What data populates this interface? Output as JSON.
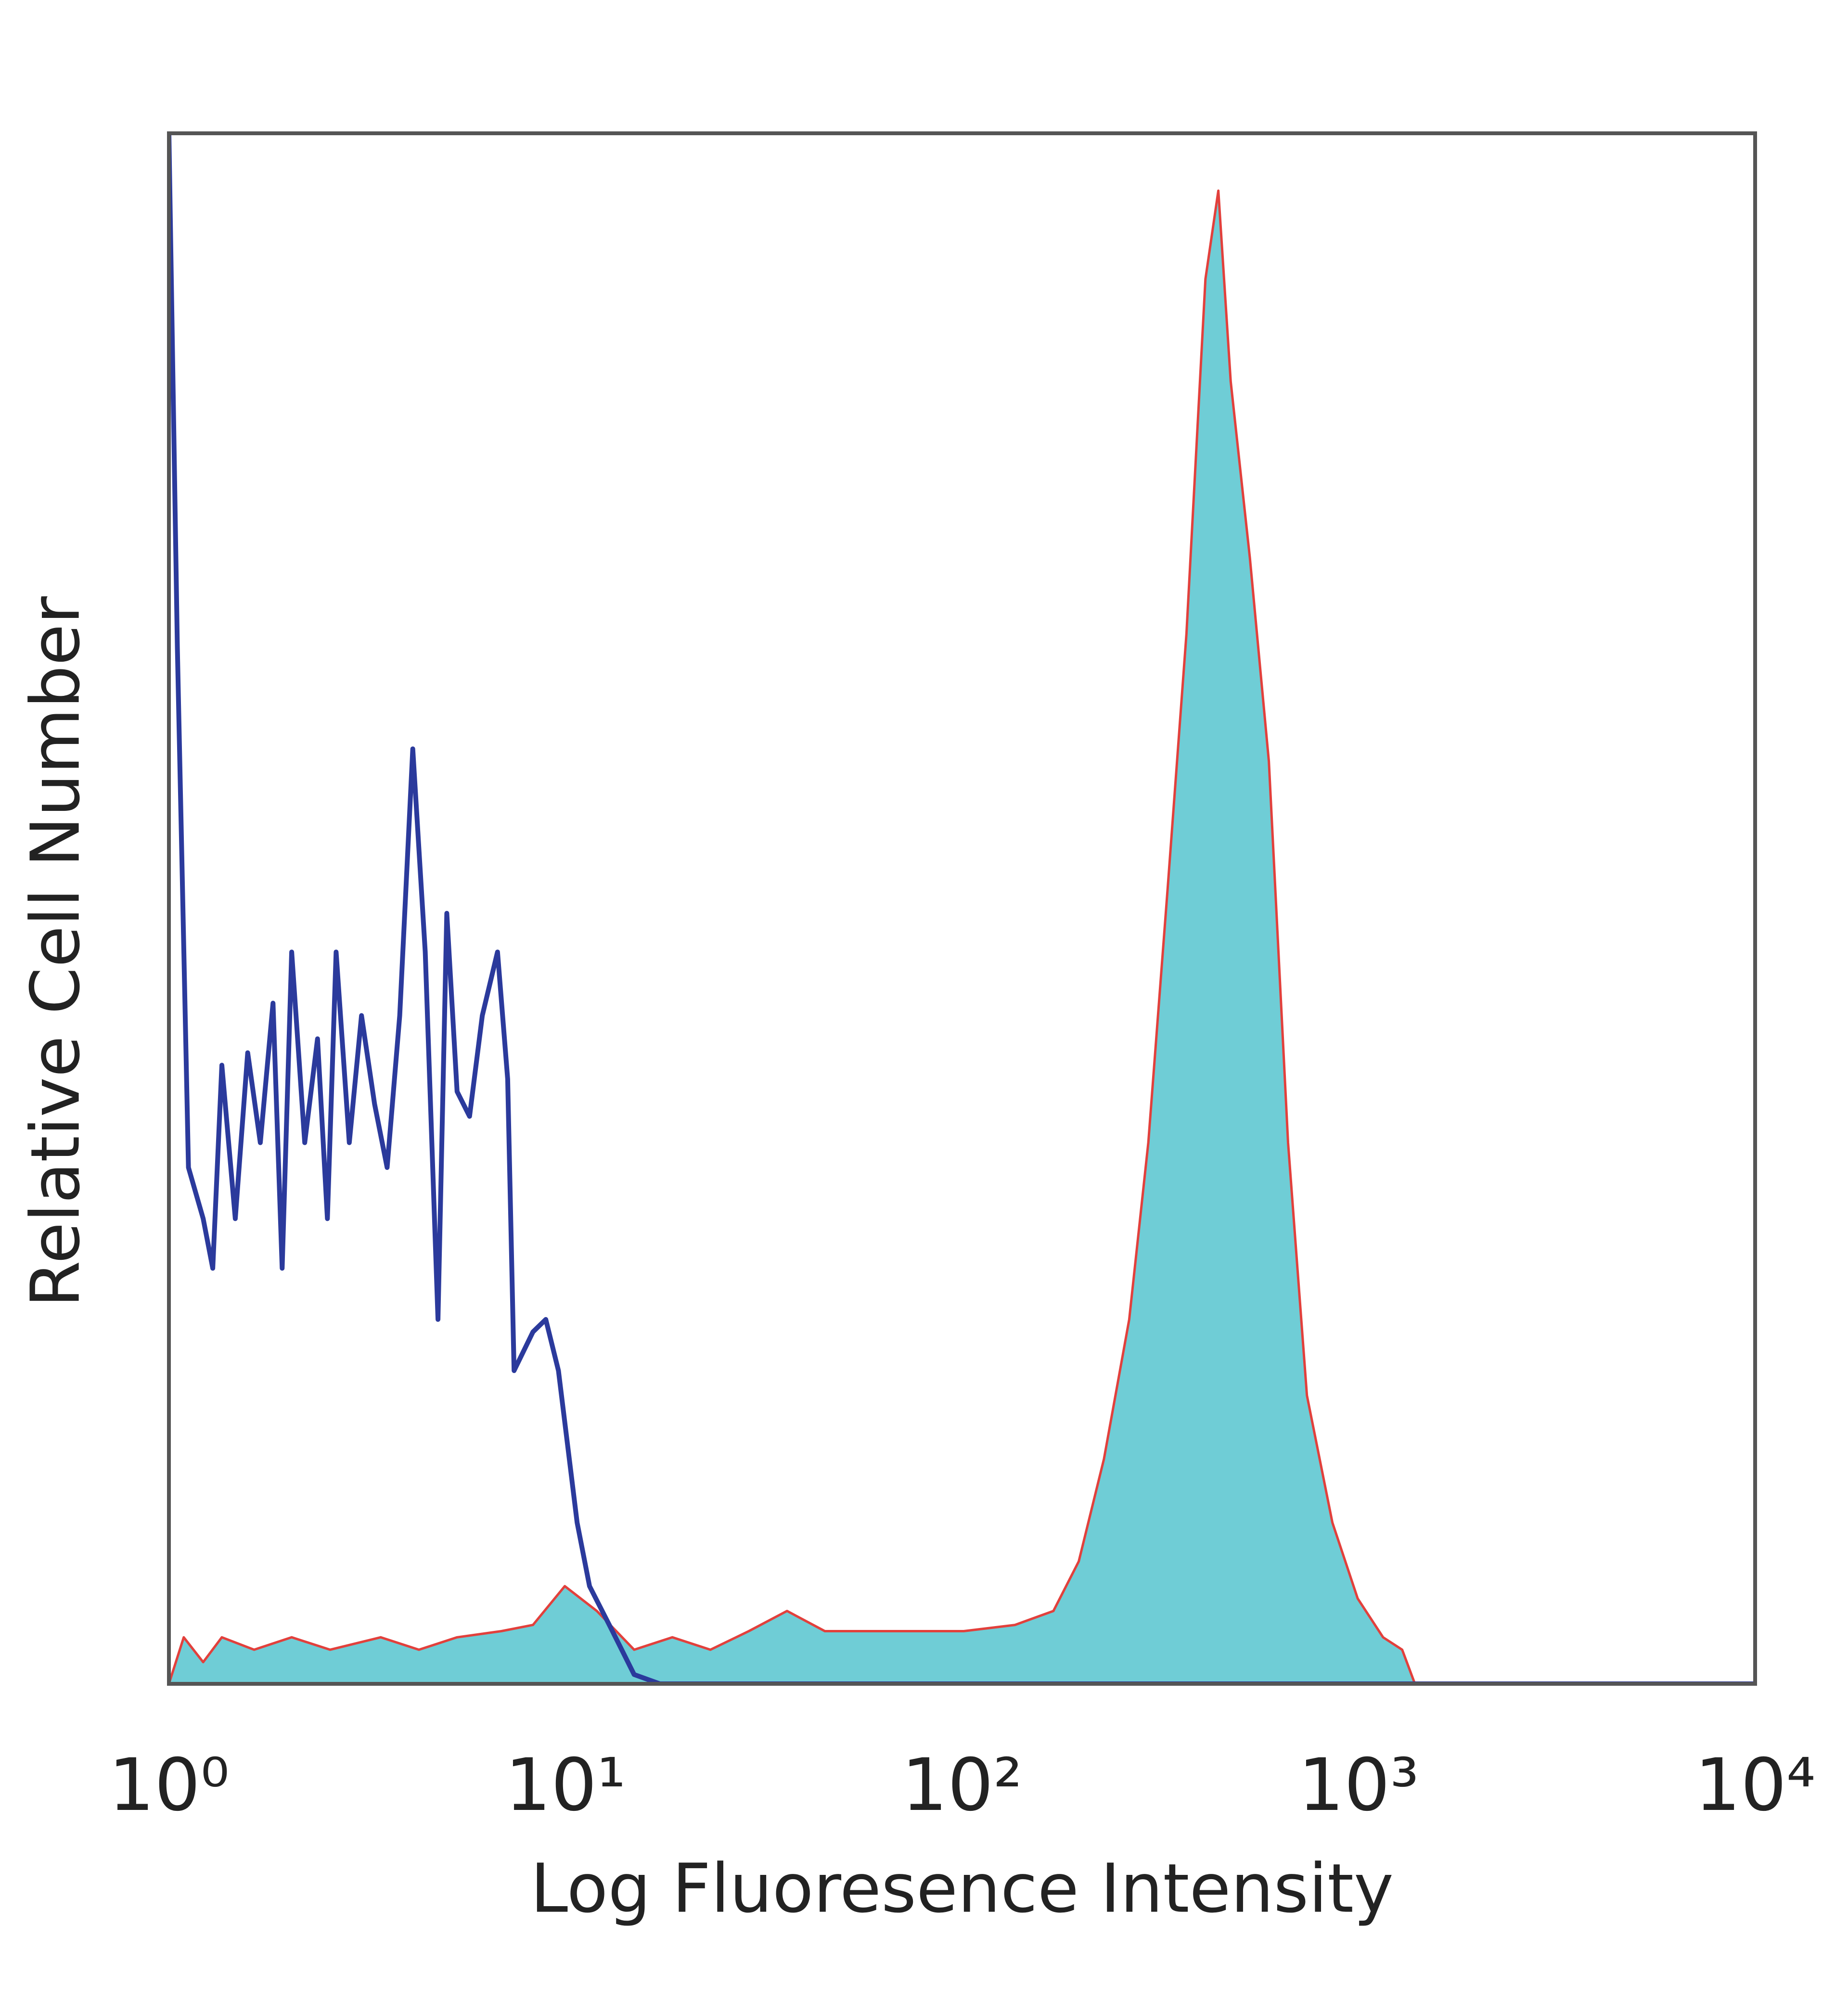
{
  "chart_data": {
    "type": "line",
    "xlabel": "Log Fluoresence Intensity",
    "ylabel": "Relative Cell Number",
    "xscale": "log",
    "xlim": [
      1,
      10000
    ],
    "ylim": [
      0,
      100
    ],
    "xticks": [
      {
        "value": 1,
        "label": "10⁰"
      },
      {
        "value": 10,
        "label": "10¹"
      },
      {
        "value": 100,
        "label": "10²"
      },
      {
        "value": 1000,
        "label": "10³"
      },
      {
        "value": 10000,
        "label": "10⁴"
      }
    ],
    "series": [
      {
        "color": "#2b3a9c",
        "fill": null,
        "x": [
          1,
          1.05,
          1.12,
          1.22,
          1.29,
          1.36,
          1.47,
          1.58,
          1.7,
          1.83,
          1.93,
          2.04,
          2.2,
          2.37,
          2.51,
          2.64,
          2.85,
          3.06,
          3.3,
          3.55,
          3.82,
          4.12,
          4.43,
          4.77,
          5.02,
          5.33,
          5.73,
          6.17,
          6.74,
          7.15,
          7.42,
          8.28,
          8.92,
          9.6,
          10.7,
          11.5,
          12.9,
          14.9,
          17.3,
          10000
        ],
        "values": [
          100,
          66.9,
          33.3,
          30.0,
          26.8,
          39.9,
          30.0,
          40.7,
          34.9,
          43.9,
          26.8,
          47.2,
          34.9,
          41.6,
          30.0,
          47.2,
          34.9,
          43.1,
          37.4,
          33.3,
          43.1,
          60.3,
          47.2,
          23.5,
          49.7,
          38.2,
          36.6,
          43.1,
          47.2,
          39.0,
          20.2,
          22.7,
          23.5,
          20.2,
          10.4,
          6.3,
          3.8,
          0.6,
          0,
          0
        ]
      },
      {
        "color": "#e2403c",
        "fill": "#6fcdd6",
        "x": [
          1,
          1.09,
          1.22,
          1.36,
          1.64,
          2.04,
          2.55,
          3.42,
          4.27,
          5.33,
          6.89,
          8.28,
          9.96,
          12.0,
          14.9,
          18.6,
          23.2,
          29.0,
          36.2,
          45.1,
          65.2,
          101,
          136,
          170,
          197,
          228,
          264,
          295,
          330,
          368,
          411,
          443,
          476,
          532,
          594,
          664,
          741,
          859,
          995,
          1153,
          1288,
          1387,
          10000
        ],
        "values": [
          0,
          3.0,
          1.4,
          3.0,
          2.2,
          3.0,
          2.2,
          3.0,
          2.2,
          3.0,
          3.4,
          3.8,
          6.3,
          4.7,
          2.2,
          3.0,
          2.2,
          3.4,
          4.7,
          3.4,
          3.4,
          3.4,
          3.8,
          4.7,
          7.9,
          14.5,
          23.5,
          34.9,
          51.3,
          67.7,
          90.6,
          96.3,
          84.0,
          72.6,
          59.5,
          34.9,
          18.6,
          10.4,
          5.5,
          3.0,
          2.2,
          0,
          0
        ]
      }
    ]
  }
}
